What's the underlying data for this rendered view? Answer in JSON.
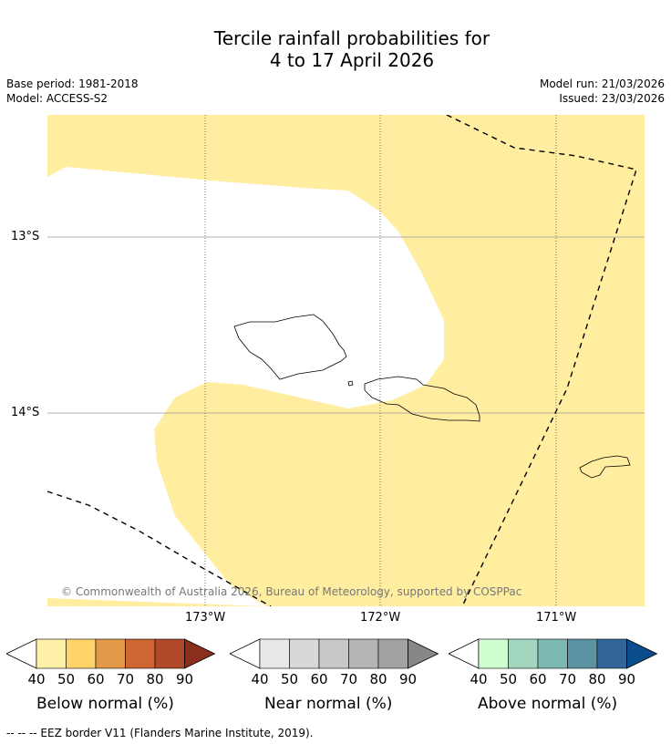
{
  "title_line1": "Tercile rainfall probabilities for",
  "title_line2": "4 to 17 April 2026",
  "base_period": "Base period: 1981-2018",
  "model": "Model: ACCESS-S2",
  "model_run": "Model run: 21/03/2026",
  "issued": "Issued: 23/03/2026",
  "copyright": "© Commonwealth of Australia 2026, Bureau of Meteorology, supported by COSPPac",
  "lat_labels": [
    "13°S",
    "14°S"
  ],
  "lon_labels": [
    "173°W",
    "172°W",
    "171°W"
  ],
  "colorbars": [
    {
      "title": "Below normal (%)",
      "ticks": [
        "40",
        "50",
        "60",
        "70",
        "80",
        "90"
      ],
      "colors": [
        "#fff0a8",
        "#ffd36a",
        "#e3994a",
        "#cd6632",
        "#b04a2a",
        "#8a2e1d"
      ]
    },
    {
      "title": "Near normal (%)",
      "ticks": [
        "40",
        "50",
        "60",
        "70",
        "80",
        "90"
      ],
      "colors": [
        "#e8e8e8",
        "#d8d8d8",
        "#c8c8c8",
        "#b5b5b5",
        "#a2a2a2",
        "#878787"
      ]
    },
    {
      "title": "Above normal (%)",
      "ticks": [
        "40",
        "50",
        "60",
        "70",
        "80",
        "90"
      ],
      "colors": [
        "#cfffd0",
        "#a3d6be",
        "#7eb8b3",
        "#5b93a3",
        "#336698",
        "#0b4d8a"
      ]
    }
  ],
  "footer": "-- -- -- EEZ border V11 (Flanders Marine Institute, 2019).",
  "colors": {
    "below_40_50": "#ffeda0",
    "border": "#000000",
    "grid": "#999999"
  }
}
